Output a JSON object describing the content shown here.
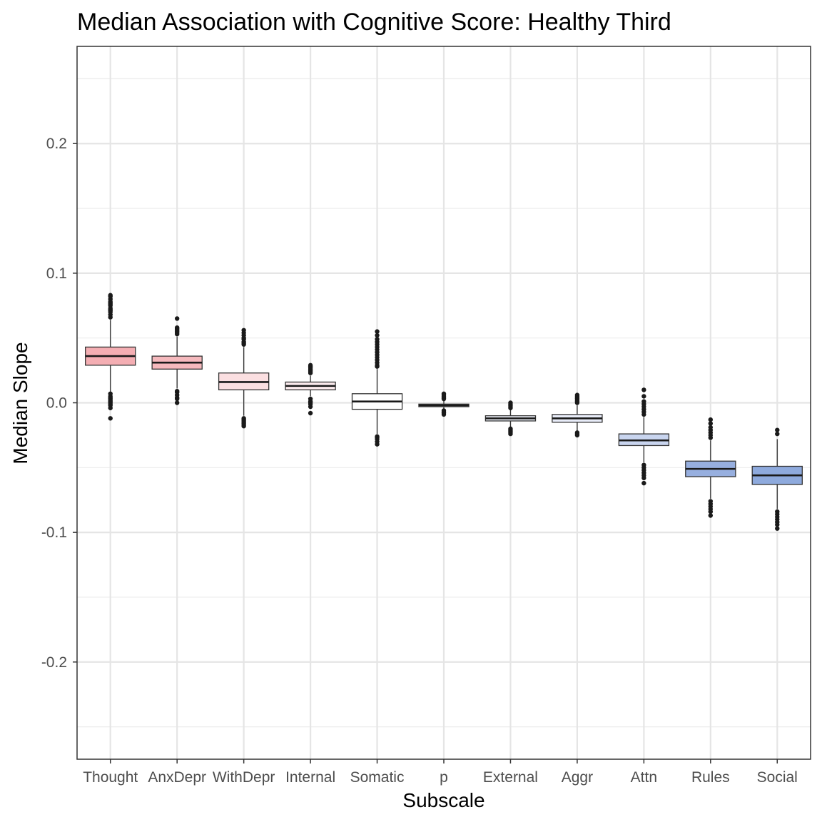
{
  "chart_data": {
    "type": "box",
    "title": "Median Association with Cognitive Score: Healthy Third",
    "xlabel": "Subscale",
    "ylabel": "Median Slope",
    "ylim": [
      -0.275,
      0.275
    ],
    "yticks": [
      -0.2,
      -0.1,
      0.0,
      0.1,
      0.2
    ],
    "ytick_labels": [
      "-0.2",
      "-0.1",
      "0.0",
      "0.1",
      "0.2"
    ],
    "grid": true,
    "categories": [
      "Thought",
      "AnxDepr",
      "WithDepr",
      "Internal",
      "Somatic",
      "p",
      "External",
      "Aggr",
      "Attn",
      "Rules",
      "Social"
    ],
    "boxes": [
      {
        "category": "Thought",
        "q1": 0.029,
        "median": 0.036,
        "q3": 0.043,
        "whisker_low": 0.008,
        "whisker_high": 0.064,
        "outliers_low": [
          0.007,
          0.005,
          0.004,
          0.003,
          0.002,
          0.001,
          0.0,
          -0.001,
          -0.002,
          -0.004,
          -0.012
        ],
        "outliers_high": [
          0.066,
          0.068,
          0.07,
          0.071,
          0.072,
          0.073,
          0.075,
          0.076,
          0.077,
          0.078,
          0.08,
          0.082,
          0.083
        ],
        "fill": "#f4aeb3"
      },
      {
        "category": "AnxDepr",
        "q1": 0.026,
        "median": 0.031,
        "q3": 0.036,
        "whisker_low": 0.011,
        "whisker_high": 0.051,
        "outliers_low": [
          0.009,
          0.008,
          0.006,
          0.004,
          0.003,
          0.0
        ],
        "outliers_high": [
          0.053,
          0.054,
          0.055,
          0.056,
          0.057,
          0.058,
          0.065
        ],
        "fill": "#f5b9bd"
      },
      {
        "category": "WithDepr",
        "q1": 0.01,
        "median": 0.016,
        "q3": 0.023,
        "whisker_low": -0.01,
        "whisker_high": 0.043,
        "outliers_low": [
          -0.012,
          -0.013,
          -0.014,
          -0.015,
          -0.016,
          -0.017,
          -0.018
        ],
        "outliers_high": [
          0.045,
          0.046,
          0.047,
          0.049,
          0.05,
          0.052,
          0.054,
          0.056
        ],
        "fill": "#fbdfe1"
      },
      {
        "category": "Internal",
        "q1": 0.01,
        "median": 0.013,
        "q3": 0.016,
        "whisker_low": 0.005,
        "whisker_high": 0.021,
        "outliers_low": [
          0.003,
          0.001,
          0.0,
          -0.001,
          -0.003,
          -0.008
        ],
        "outliers_high": [
          0.023,
          0.024,
          0.025,
          0.026,
          0.027,
          0.028,
          0.029
        ],
        "fill": "#fcecef"
      },
      {
        "category": "Somatic",
        "q1": -0.005,
        "median": 0.001,
        "q3": 0.007,
        "whisker_low": -0.024,
        "whisker_high": 0.026,
        "outliers_low": [
          -0.026,
          -0.027,
          -0.028,
          -0.03,
          -0.032
        ],
        "outliers_high": [
          0.028,
          0.029,
          0.031,
          0.033,
          0.035,
          0.037,
          0.039,
          0.041,
          0.043,
          0.045,
          0.047,
          0.049,
          0.052,
          0.055
        ],
        "fill": "#ffffff"
      },
      {
        "category": "p",
        "q1": -0.003,
        "median": -0.002,
        "q3": -0.001,
        "whisker_low": -0.005,
        "whisker_high": 0.002,
        "outliers_low": [
          -0.006,
          -0.007,
          -0.008,
          -0.009
        ],
        "outliers_high": [
          0.003,
          0.004,
          0.005,
          0.006,
          0.007
        ],
        "fill": "#f7f8fc"
      },
      {
        "category": "External",
        "q1": -0.014,
        "median": -0.012,
        "q3": -0.01,
        "whisker_low": -0.019,
        "whisker_high": -0.005,
        "outliers_low": [
          -0.02,
          -0.021,
          -0.022,
          -0.023,
          -0.024
        ],
        "outliers_high": [
          -0.004,
          -0.003,
          -0.002,
          -0.001,
          0.0
        ],
        "fill": "#eef1fa"
      },
      {
        "category": "Aggr",
        "q1": -0.015,
        "median": -0.012,
        "q3": -0.009,
        "whisker_low": -0.022,
        "whisker_high": -0.002,
        "outliers_low": [
          -0.023,
          -0.024,
          -0.025
        ],
        "outliers_high": [
          0.0,
          0.001,
          0.002,
          0.003,
          0.004,
          0.005,
          0.006
        ],
        "fill": "#e8ecf8"
      },
      {
        "category": "Attn",
        "q1": -0.033,
        "median": -0.029,
        "q3": -0.024,
        "whisker_low": -0.046,
        "whisker_high": -0.011,
        "outliers_low": [
          -0.048,
          -0.05,
          -0.052,
          -0.054,
          -0.056,
          -0.058,
          -0.062
        ],
        "outliers_high": [
          -0.009,
          -0.007,
          -0.005,
          -0.003,
          -0.001,
          0.001,
          0.005,
          0.01
        ],
        "fill": "#c9d5ef"
      },
      {
        "category": "Rules",
        "q1": -0.057,
        "median": -0.051,
        "q3": -0.045,
        "whisker_low": -0.074,
        "whisker_high": -0.029,
        "outliers_low": [
          -0.076,
          -0.078,
          -0.08,
          -0.082,
          -0.084,
          -0.087
        ],
        "outliers_high": [
          -0.027,
          -0.025,
          -0.023,
          -0.021,
          -0.019,
          -0.016,
          -0.013
        ],
        "fill": "#97afdf"
      },
      {
        "category": "Social",
        "q1": -0.063,
        "median": -0.056,
        "q3": -0.049,
        "whisker_low": -0.082,
        "whisker_high": -0.028,
        "outliers_low": [
          -0.084,
          -0.086,
          -0.088,
          -0.09,
          -0.092,
          -0.094,
          -0.097
        ],
        "outliers_high": [
          -0.024,
          -0.021
        ],
        "fill": "#8eaadd"
      }
    ]
  }
}
